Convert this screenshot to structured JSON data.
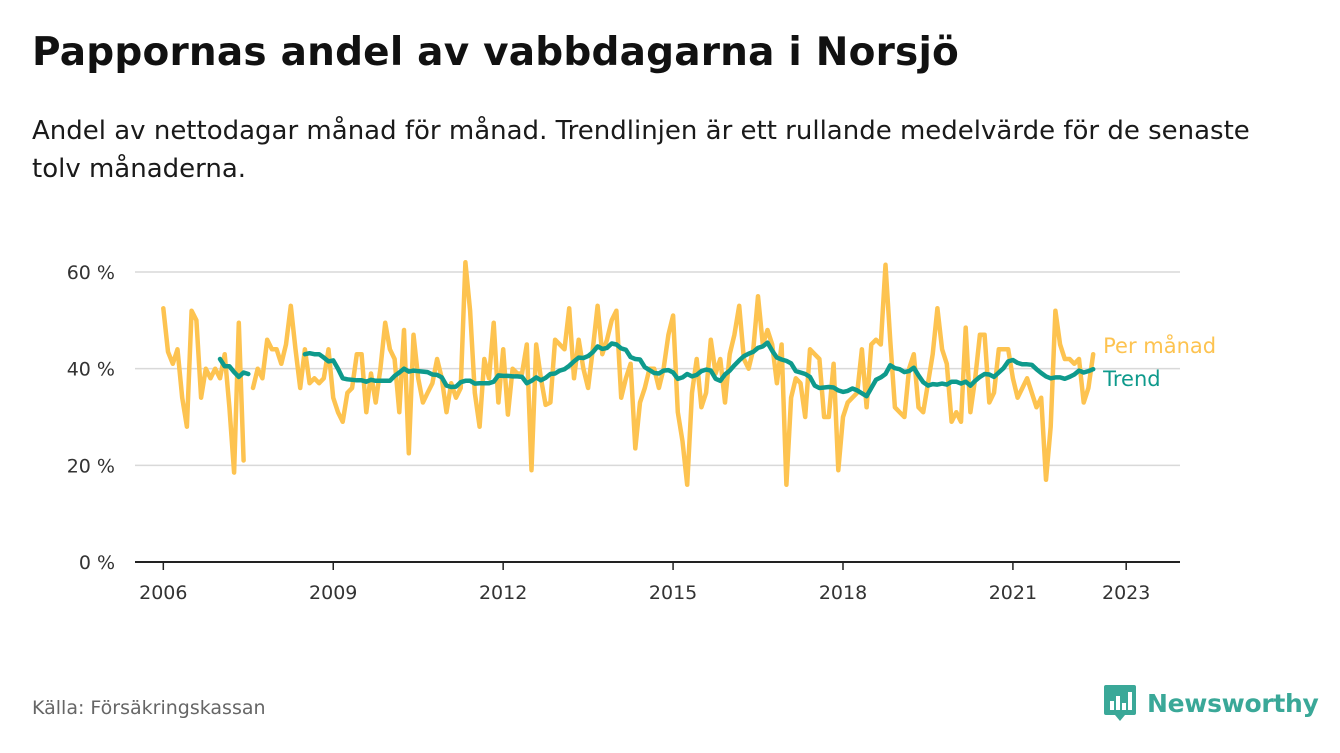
{
  "title": "Pappornas andel av vabbdagarna i Norsjö",
  "subtitle": "Andel av nettodagar månad för månad. Trendlinjen är ett rullande medelvärde för de senaste tolv månaderna.",
  "source": "Källa: Försäkringskassan",
  "brand": "Newsworthy",
  "colors": {
    "monthly": "#fdc350",
    "trend": "#0e9a8c",
    "grid": "#d9d9d9",
    "axis": "#222222",
    "brand": "#3aa898"
  },
  "chart_data": {
    "type": "line",
    "ylim": [
      0,
      60
    ],
    "yticks": [
      0,
      20,
      40,
      60
    ],
    "ytick_labels": [
      "0 %",
      "20 %",
      "40 %",
      "60 %"
    ],
    "xlim": [
      2005.5,
      2023.95
    ],
    "xticks": [
      2006,
      2009,
      2012,
      2015,
      2018,
      2021,
      2023
    ],
    "xtick_labels": [
      "2006",
      "2009",
      "2012",
      "2015",
      "2018",
      "2021",
      "2023"
    ],
    "grid": true,
    "series": [
      {
        "name": "Per månad",
        "color": "#fdc350",
        "start": "2006-01",
        "values": [
          52.5,
          43.5,
          41,
          44,
          34,
          28,
          52,
          50,
          34,
          40,
          38,
          40,
          38,
          43,
          32,
          18.5,
          49.5,
          21,
          null,
          36,
          40,
          38,
          46,
          44,
          44,
          41,
          45,
          53,
          44,
          36,
          44,
          37,
          38,
          37,
          38,
          44,
          34,
          31,
          29,
          35,
          36,
          43,
          43,
          31,
          39,
          33,
          40,
          49.5,
          44,
          42,
          31,
          48,
          22.5,
          47,
          38,
          33,
          35,
          37,
          42,
          38,
          31,
          37,
          34,
          36,
          62,
          52,
          35,
          28,
          42,
          38,
          49.5,
          33,
          44,
          30.5,
          40,
          39,
          39,
          45,
          19,
          45,
          38,
          32.5,
          33,
          46,
          45,
          44,
          52.5,
          38,
          46,
          40,
          36,
          44,
          53,
          43,
          46,
          50,
          52,
          34,
          38,
          41,
          23.5,
          33,
          36,
          40,
          40,
          36,
          40,
          47,
          51,
          31,
          25,
          16,
          35,
          42,
          32,
          35,
          46,
          39,
          42,
          33,
          43,
          47,
          53,
          42,
          40,
          44,
          55,
          45,
          48,
          45,
          37,
          45,
          16,
          34,
          38,
          37,
          30,
          44,
          43,
          42,
          30,
          30,
          41,
          19,
          30,
          33,
          34,
          35,
          44,
          32,
          45,
          46,
          45,
          61.5,
          46,
          32,
          31,
          30,
          40,
          43,
          32,
          31,
          37,
          43,
          52.5,
          44,
          41,
          29,
          31,
          29,
          48.5,
          31,
          38,
          47,
          47,
          33,
          35,
          44,
          44,
          44,
          38,
          34,
          36,
          38,
          35,
          32,
          34,
          17,
          28,
          52,
          45,
          42,
          42,
          41,
          42,
          33,
          36,
          43
        ]
      },
      {
        "name": "Trend",
        "color": "#0e9a8c",
        "start": "2006-01",
        "values": [
          null,
          null,
          null,
          null,
          null,
          null,
          null,
          null,
          null,
          null,
          null,
          null,
          42,
          40.5,
          40.5,
          39.3,
          38.3,
          39.2,
          38.9,
          null,
          null,
          null,
          null,
          null,
          null,
          null,
          null,
          null,
          null,
          null,
          43,
          43.2,
          43,
          43,
          42.3,
          41.5,
          41.7,
          40,
          38,
          37.8,
          37.7,
          37.6,
          37.6,
          37.3,
          37.7,
          37.5,
          37.5,
          37.5,
          37.5,
          38.5,
          39.2,
          40,
          39.4,
          39.6,
          39.5,
          39.4,
          39.3,
          38.8,
          38.7,
          38.2,
          36.5,
          36.2,
          36.3,
          37.2,
          37.5,
          37.5,
          36.9,
          37,
          37,
          37,
          37.3,
          38.6,
          38.5,
          38.5,
          38.4,
          38.4,
          38.3,
          37,
          37.5,
          38.2,
          37.6,
          38.1,
          38.9,
          39,
          39.6,
          39.9,
          40.6,
          41.5,
          42.3,
          42.2,
          42.6,
          43.4,
          44.6,
          44.1,
          44.3,
          45.2,
          45,
          44.2,
          43.9,
          42.4,
          42,
          41.9,
          40.3,
          39.7,
          39.1,
          39,
          39.6,
          39.7,
          39.2,
          37.9,
          38.2,
          38.9,
          38.4,
          38.7,
          39.5,
          39.8,
          39.6,
          37.9,
          37.5,
          38.8,
          39.6,
          40.7,
          41.7,
          42.6,
          43.1,
          43.5,
          44.3,
          44.6,
          45.4,
          43.7,
          42.3,
          41.9,
          41.6,
          41.1,
          39.5,
          39.2,
          38.9,
          38.3,
          36.5,
          36,
          36.1,
          36.2,
          36.1,
          35.5,
          35.2,
          35.4,
          35.9,
          35.5,
          34.9,
          34.3,
          36,
          37.7,
          38.2,
          38.9,
          40.7,
          40.1,
          39.9,
          39.3,
          39.5,
          40.2,
          38.6,
          37.2,
          36.5,
          36.8,
          36.7,
          36.9,
          36.7,
          37.3,
          37.3,
          36.9,
          37.3,
          36.5,
          37.5,
          38.3,
          38.9,
          38.8,
          38.3,
          39.2,
          40.1,
          41.5,
          41.8,
          41.2,
          40.9,
          40.9,
          40.8,
          39.9,
          39.1,
          38.4,
          38,
          38.2,
          38.2,
          37.9,
          38.3,
          38.8,
          39.6,
          39.2,
          39.5,
          39.9
        ]
      }
    ]
  }
}
